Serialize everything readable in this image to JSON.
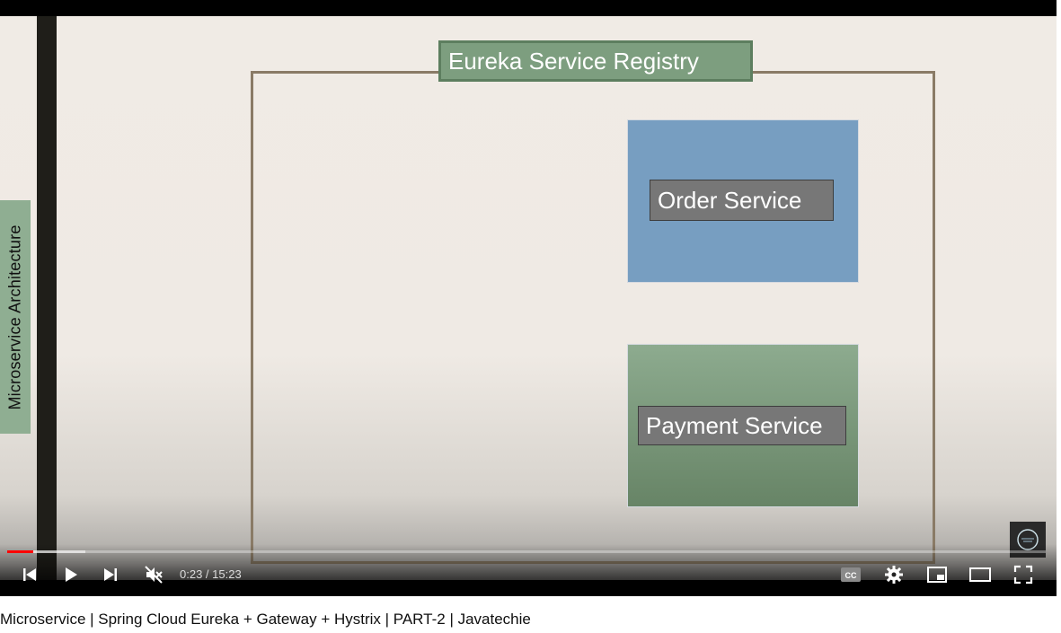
{
  "slide": {
    "side_label": "Microservice Architecture",
    "registry_title": "Eureka Service Registry",
    "services": [
      {
        "label": "Order Service"
      },
      {
        "label": "Payment Service"
      }
    ]
  },
  "player": {
    "current_time": "0:23",
    "duration": "15:23",
    "time_text": "0:23 / 15:23",
    "progress_played_fraction": 0.025,
    "progress_loaded_fraction": 0.075,
    "muted": true,
    "icons": {
      "previous": "skip-previous-icon",
      "play": "play-icon",
      "next": "skip-next-icon",
      "volume": "volume-muted-icon",
      "captions": "captions-icon",
      "settings": "gear-icon",
      "miniplayer": "miniplayer-icon",
      "theater": "theater-mode-icon",
      "fullscreen": "fullscreen-icon"
    },
    "captions_label": "CC"
  },
  "video_title": "Microservice | Spring Cloud Eureka + Gateway + Hystrix | PART-2 | Javatechie",
  "colors": {
    "progress_played": "#ff0000",
    "service_order_bg": "#779ec1",
    "service_payment_bg": "#7d9e7f",
    "registry_frame": "#8a7b66"
  }
}
